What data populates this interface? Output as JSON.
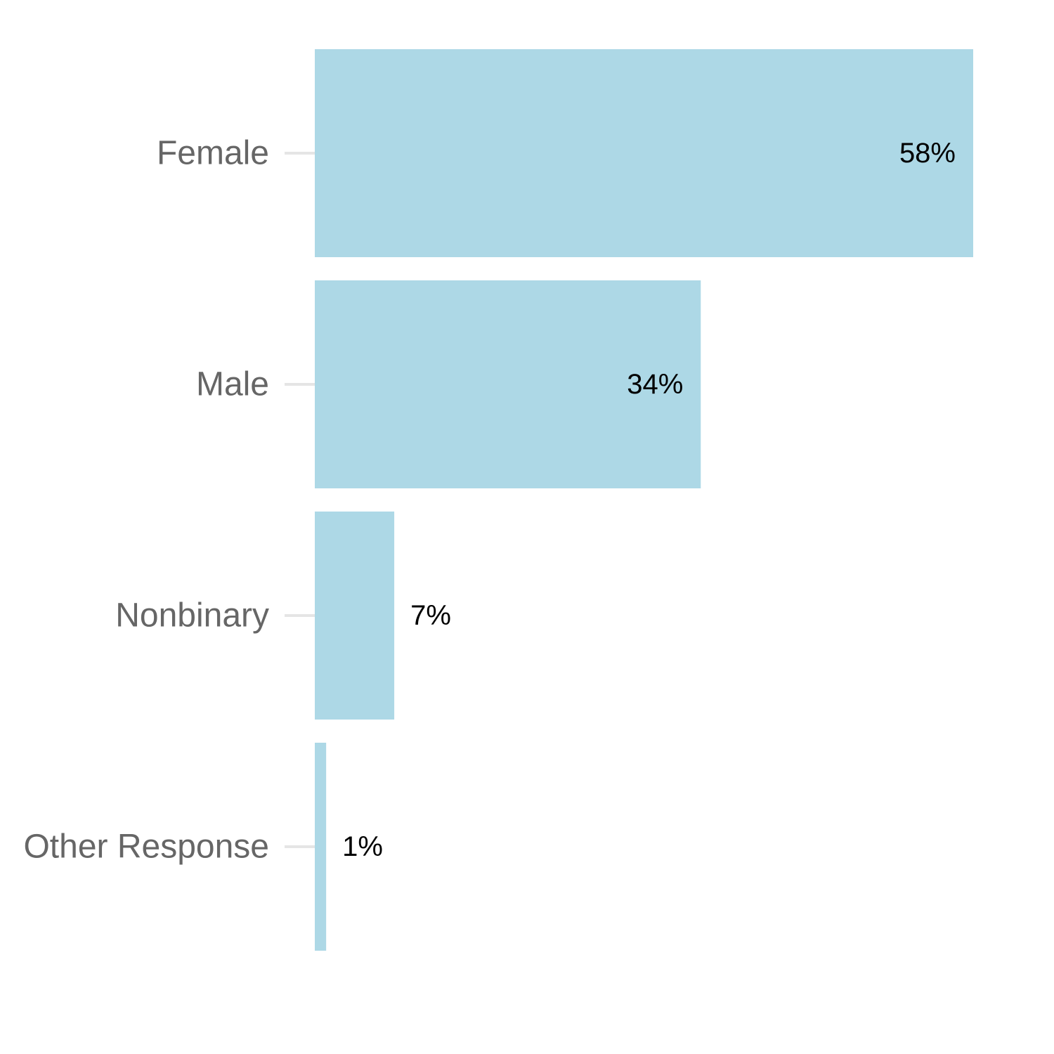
{
  "chart_data": {
    "type": "bar",
    "orientation": "horizontal",
    "categories": [
      "Female",
      "Male",
      "Nonbinary",
      "Other Response"
    ],
    "values": [
      58,
      34,
      7,
      1
    ],
    "value_labels": [
      "58%",
      "34%",
      "7%",
      "1%"
    ],
    "value_unit": "%",
    "xlim": [
      0,
      58
    ],
    "title": "",
    "xlabel": "",
    "ylabel": "",
    "grid": false,
    "legend": "none",
    "bar_color": "#add8e6",
    "category_label_color": "#666666",
    "value_label_color": "#000000",
    "tick_color": "#e5e5e5"
  }
}
